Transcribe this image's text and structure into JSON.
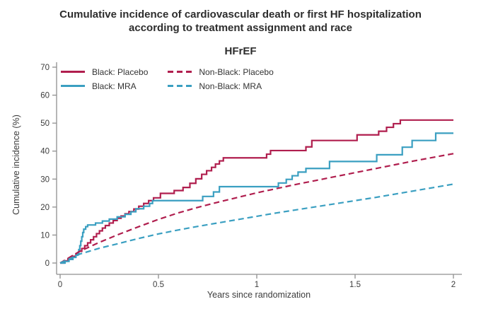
{
  "header": {
    "title": "Cumulative incidence of cardiovascular death or first HF hospitalization according to treatment assignment and race",
    "subtitle": "HFrEF"
  },
  "colors": {
    "placebo_line": "#b01e4e",
    "mra_line": "#3a9fc1",
    "axis_line": "#8f8f8f",
    "axis_text": "#3c3c3c"
  },
  "chart_data": {
    "type": "line",
    "variant": "cumulative-incidence-step-plot",
    "title": "Cumulative incidence of cardiovascular death or first HF hospitalization according to treatment assignment and race",
    "subtitle": "HFrEF",
    "xlabel": "Years since randomization",
    "ylabel": "Cumulative incidence (%)",
    "xlim": [
      0,
      2
    ],
    "ylim": [
      0,
      70
    ],
    "x_ticks": [
      0,
      0.5,
      1,
      1.5,
      2
    ],
    "x_tick_labels": [
      "0",
      "0.5",
      "1",
      "1.5",
      "2"
    ],
    "y_ticks": [
      0,
      10,
      20,
      30,
      40,
      50,
      60,
      70
    ],
    "grid": false,
    "legend_position": "top-left-inside",
    "series": [
      {
        "name": "Black: Placebo",
        "color": "#b01e4e",
        "style": "solid",
        "step": true,
        "points": [
          [
            0,
            0
          ],
          [
            0.02,
            0.8
          ],
          [
            0.04,
            1.6
          ],
          [
            0.06,
            2.4
          ],
          [
            0.08,
            3.3
          ],
          [
            0.095,
            4.2
          ],
          [
            0.11,
            5.2
          ],
          [
            0.125,
            6.2
          ],
          [
            0.14,
            7.2
          ],
          [
            0.155,
            8.3
          ],
          [
            0.17,
            9.4
          ],
          [
            0.185,
            10.5
          ],
          [
            0.2,
            11.5
          ],
          [
            0.215,
            12.5
          ],
          [
            0.23,
            13.4
          ],
          [
            0.25,
            14.3
          ],
          [
            0.27,
            15.2
          ],
          [
            0.29,
            16
          ],
          [
            0.31,
            16.8
          ],
          [
            0.33,
            17.6
          ],
          [
            0.35,
            18.4
          ],
          [
            0.375,
            19.3
          ],
          [
            0.4,
            20.3
          ],
          [
            0.425,
            21.3
          ],
          [
            0.45,
            22.3
          ],
          [
            0.475,
            23.3
          ],
          [
            0.51,
            24.9
          ],
          [
            0.58,
            25.9
          ],
          [
            0.625,
            27
          ],
          [
            0.66,
            28.5
          ],
          [
            0.69,
            30.1
          ],
          [
            0.72,
            31.7
          ],
          [
            0.745,
            33
          ],
          [
            0.77,
            34.2
          ],
          [
            0.79,
            35.4
          ],
          [
            0.81,
            36.5
          ],
          [
            0.83,
            37.6
          ],
          [
            1.05,
            38.9
          ],
          [
            1.07,
            40.2
          ],
          [
            1.25,
            41.5
          ],
          [
            1.28,
            43.8
          ],
          [
            1.51,
            45.8
          ],
          [
            1.62,
            47.1
          ],
          [
            1.66,
            48.5
          ],
          [
            1.695,
            49.8
          ],
          [
            1.73,
            51.1
          ],
          [
            2,
            51.1
          ]
        ]
      },
      {
        "name": "Black: MRA",
        "color": "#3a9fc1",
        "style": "solid",
        "step": true,
        "points": [
          [
            0,
            0
          ],
          [
            0.025,
            0.6
          ],
          [
            0.045,
            1.3
          ],
          [
            0.065,
            2
          ],
          [
            0.08,
            2.8
          ],
          [
            0.09,
            3.7
          ],
          [
            0.095,
            4.8
          ],
          [
            0.1,
            6.2
          ],
          [
            0.105,
            7.8
          ],
          [
            0.11,
            9.4
          ],
          [
            0.115,
            10.9
          ],
          [
            0.12,
            12.1
          ],
          [
            0.13,
            13
          ],
          [
            0.14,
            13.6
          ],
          [
            0.18,
            14.3
          ],
          [
            0.215,
            15
          ],
          [
            0.25,
            15.7
          ],
          [
            0.29,
            16.5
          ],
          [
            0.33,
            17.4
          ],
          [
            0.36,
            18.3
          ],
          [
            0.385,
            19.4
          ],
          [
            0.425,
            20.3
          ],
          [
            0.455,
            21.3
          ],
          [
            0.47,
            22.3
          ],
          [
            0.725,
            23.8
          ],
          [
            0.78,
            25.4
          ],
          [
            0.81,
            27.3
          ],
          [
            1.11,
            28.6
          ],
          [
            1.15,
            29.9
          ],
          [
            1.18,
            31.2
          ],
          [
            1.21,
            32.5
          ],
          [
            1.25,
            33.8
          ],
          [
            1.37,
            36.3
          ],
          [
            1.61,
            38.7
          ],
          [
            1.74,
            41.4
          ],
          [
            1.79,
            43.8
          ],
          [
            1.91,
            46.4
          ],
          [
            2,
            46.4
          ]
        ]
      },
      {
        "name": "Non-Black: Placebo",
        "color": "#b01e4e",
        "style": "dashed",
        "step": false,
        "points": [
          [
            0,
            0
          ],
          [
            0.1,
            4.2
          ],
          [
            0.2,
            7.4
          ],
          [
            0.3,
            10.3
          ],
          [
            0.4,
            13
          ],
          [
            0.5,
            15.6
          ],
          [
            0.6,
            17.9
          ],
          [
            0.7,
            19.9
          ],
          [
            0.8,
            21.7
          ],
          [
            0.9,
            23.4
          ],
          [
            1,
            25.1
          ],
          [
            1.1,
            26.6
          ],
          [
            1.2,
            28.1
          ],
          [
            1.3,
            29.5
          ],
          [
            1.4,
            30.9
          ],
          [
            1.5,
            32.3
          ],
          [
            1.6,
            33.7
          ],
          [
            1.7,
            35.1
          ],
          [
            1.8,
            36.5
          ],
          [
            1.9,
            37.8
          ],
          [
            2,
            39.1
          ]
        ]
      },
      {
        "name": "Non-Black: MRA",
        "color": "#3a9fc1",
        "style": "dashed",
        "step": false,
        "points": [
          [
            0,
            0
          ],
          [
            0.1,
            3.2
          ],
          [
            0.2,
            5.3
          ],
          [
            0.3,
            7
          ],
          [
            0.4,
            8.8
          ],
          [
            0.5,
            10.4
          ],
          [
            0.6,
            11.8
          ],
          [
            0.7,
            13.1
          ],
          [
            0.8,
            14.3
          ],
          [
            0.9,
            15.5
          ],
          [
            1,
            16.7
          ],
          [
            1.1,
            17.9
          ],
          [
            1.2,
            19
          ],
          [
            1.3,
            20.1
          ],
          [
            1.4,
            21.2
          ],
          [
            1.5,
            22.3
          ],
          [
            1.6,
            23.4
          ],
          [
            1.7,
            24.6
          ],
          [
            1.8,
            25.8
          ],
          [
            1.9,
            27
          ],
          [
            2,
            28.2
          ]
        ]
      }
    ]
  }
}
